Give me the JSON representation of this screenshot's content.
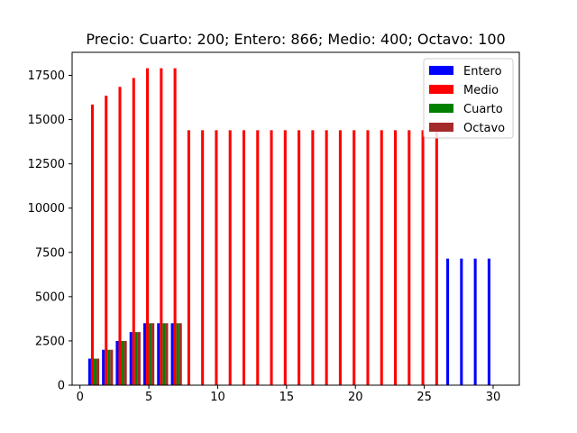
{
  "chart_data": {
    "type": "bar",
    "title": "Precio: Cuarto: 200; Entero: 866; Medio: 400; Octavo: 100",
    "xlabel": "",
    "ylabel": "",
    "xlim": [
      -0.57,
      31.9
    ],
    "ylim": [
      0,
      18800
    ],
    "x_ticks": [
      0,
      5,
      10,
      15,
      20,
      25,
      30
    ],
    "y_ticks": [
      0,
      2500,
      5000,
      7500,
      10000,
      12500,
      15000,
      17500
    ],
    "legend_position": "upper right",
    "grid": false,
    "x": [
      1,
      2,
      3,
      4,
      5,
      6,
      7,
      8,
      9,
      10,
      11,
      12,
      13,
      14,
      15,
      16,
      17,
      18,
      19,
      20,
      21,
      22,
      23,
      24,
      25,
      26,
      27,
      28,
      29,
      30
    ],
    "series": [
      {
        "name": "Entero",
        "color": "#0000ff",
        "offset": -0.3,
        "values": [
          1500,
          2000,
          2500,
          3000,
          3500,
          3500,
          3500,
          0,
          0,
          0,
          0,
          0,
          0,
          0,
          0,
          0,
          0,
          0,
          0,
          0,
          0,
          0,
          0,
          0,
          0,
          0,
          7150,
          7150,
          7150,
          7150
        ]
      },
      {
        "name": "Medio",
        "color": "#ff0000",
        "offset": -0.1,
        "values": [
          15850,
          16350,
          16850,
          17350,
          17900,
          17900,
          17900,
          14400,
          14400,
          14400,
          14400,
          14400,
          14400,
          14400,
          14400,
          14400,
          14400,
          14400,
          14400,
          14400,
          14400,
          14400,
          14400,
          14400,
          14400,
          14400,
          0,
          0,
          0,
          0
        ]
      },
      {
        "name": "Cuarto",
        "color": "#008000",
        "offset": 0.1,
        "values": [
          1500,
          2000,
          2500,
          3000,
          3500,
          3500,
          3500,
          0,
          0,
          0,
          0,
          0,
          0,
          0,
          0,
          0,
          0,
          0,
          0,
          0,
          0,
          0,
          0,
          0,
          0,
          0,
          0,
          0,
          0,
          0
        ]
      },
      {
        "name": "Octavo",
        "color": "#a52a2a",
        "offset": 0.3,
        "values": [
          1500,
          2000,
          2500,
          3000,
          3500,
          3500,
          3500,
          0,
          0,
          0,
          0,
          0,
          0,
          0,
          0,
          0,
          0,
          0,
          0,
          0,
          0,
          0,
          0,
          0,
          0,
          0,
          0,
          0,
          0,
          0
        ]
      }
    ]
  }
}
